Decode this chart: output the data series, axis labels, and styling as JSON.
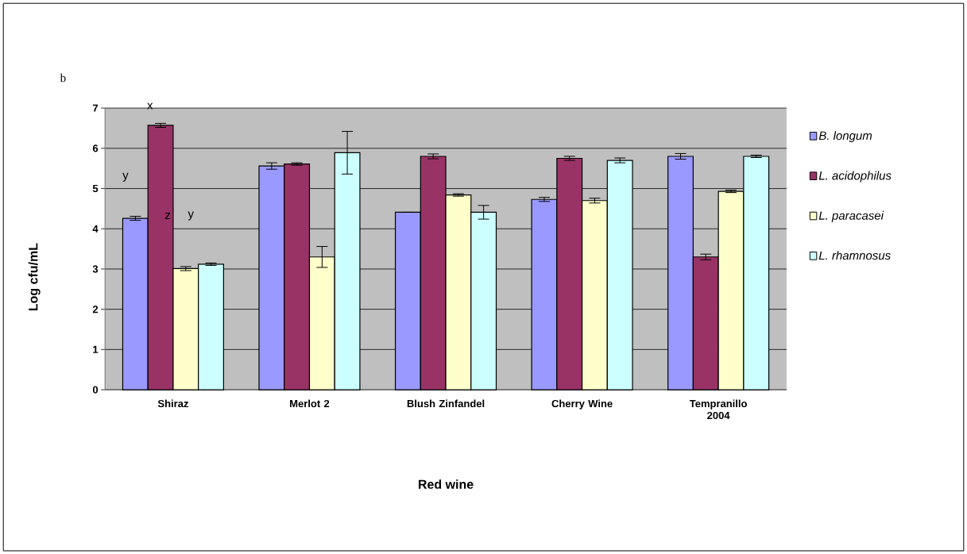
{
  "chart_data": {
    "type": "bar",
    "title": "b",
    "xlabel": "Red wine",
    "ylabel": "Log cfu/mL",
    "categories": [
      "Shiraz",
      "Merlot 2",
      "Blush Zinfandel",
      "Cherry Wine",
      "Tempranillo 2004"
    ],
    "series": [
      {
        "name": "B. longum",
        "color": "#9999ff",
        "values": [
          4.26,
          5.56,
          4.41,
          4.73,
          5.8
        ],
        "errors": [
          0.05,
          0.08,
          0,
          0.05,
          0.07
        ]
      },
      {
        "name": "L. acidophilus",
        "color": "#993366",
        "values": [
          6.57,
          5.61,
          5.8,
          5.75,
          3.3
        ],
        "errors": [
          0.05,
          0.03,
          0.06,
          0.05,
          0.07
        ]
      },
      {
        "name": "L. paracasei",
        "color": "#ffffcc",
        "values": [
          3.01,
          3.3,
          4.84,
          4.7,
          4.93
        ],
        "errors": [
          0.05,
          0.26,
          0.03,
          0.06,
          0.03
        ]
      },
      {
        "name": "L. rhamnosus",
        "color": "#ccffff",
        "values": [
          3.12,
          5.89,
          4.41,
          5.7,
          5.8
        ],
        "errors": [
          0.03,
          0.53,
          0.17,
          0.06,
          0.03
        ]
      }
    ],
    "annotations": [
      "x",
      "y",
      "z",
      "y"
    ],
    "ylim": [
      0,
      7
    ],
    "yticks": [
      0,
      1,
      2,
      3,
      4,
      5,
      6,
      7
    ],
    "grid": "y",
    "legend": "right"
  }
}
